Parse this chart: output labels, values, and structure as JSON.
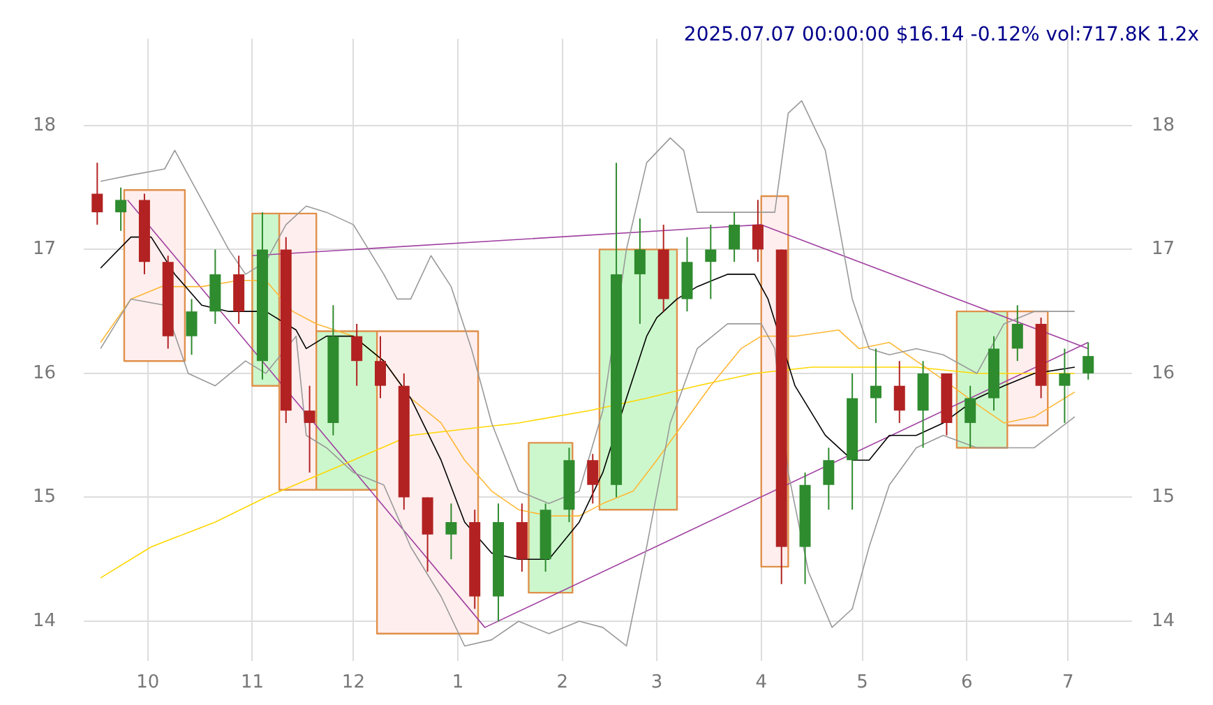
{
  "chart_data": {
    "type": "candlestick",
    "title": "2025.07.07 00:00:00 $16.14 -0.12% vol:717.8K 1.2x",
    "x": [
      "2024-09-16",
      "2024-09-23",
      "2024-09-30",
      "2024-10-07",
      "2024-10-14",
      "2024-10-21",
      "2024-10-28",
      "2024-11-04",
      "2024-11-11",
      "2024-11-18",
      "2024-11-25",
      "2024-12-02",
      "2024-12-09",
      "2024-12-16",
      "2024-12-23",
      "2024-12-30",
      "2025-01-06",
      "2025-01-13",
      "2025-01-20",
      "2025-01-27",
      "2025-02-03",
      "2025-02-10",
      "2025-02-17",
      "2025-02-24",
      "2025-03-03",
      "2025-03-10",
      "2025-03-17",
      "2025-03-24",
      "2025-03-31",
      "2025-04-07",
      "2025-04-14",
      "2025-04-21",
      "2025-04-28",
      "2025-05-05",
      "2025-05-12",
      "2025-05-19",
      "2025-05-26",
      "2025-06-02",
      "2025-06-09",
      "2025-06-16",
      "2025-06-23",
      "2025-06-30",
      "2025-07-07"
    ],
    "ohlc": [
      [
        17.45,
        17.7,
        17.2,
        17.3
      ],
      [
        17.3,
        17.5,
        17.15,
        17.4
      ],
      [
        17.4,
        17.45,
        16.8,
        16.9
      ],
      [
        16.9,
        16.95,
        16.2,
        16.3
      ],
      [
        16.3,
        16.6,
        16.15,
        16.5
      ],
      [
        16.5,
        17.0,
        16.4,
        16.8
      ],
      [
        16.8,
        16.95,
        16.4,
        16.5
      ],
      [
        16.1,
        17.3,
        15.95,
        17.0
      ],
      [
        17.0,
        17.1,
        15.6,
        15.7
      ],
      [
        15.7,
        15.9,
        15.2,
        15.6
      ],
      [
        15.6,
        16.55,
        15.5,
        16.3
      ],
      [
        16.3,
        16.4,
        15.9,
        16.1
      ],
      [
        16.1,
        16.3,
        15.8,
        15.9
      ],
      [
        15.9,
        16.0,
        14.9,
        15.0
      ],
      [
        15.0,
        15.0,
        14.4,
        14.7
      ],
      [
        14.7,
        14.95,
        14.5,
        14.8
      ],
      [
        14.8,
        14.9,
        14.1,
        14.2
      ],
      [
        14.2,
        14.95,
        14.0,
        14.8
      ],
      [
        14.8,
        14.95,
        14.4,
        14.5
      ],
      [
        14.5,
        14.95,
        14.4,
        14.9
      ],
      [
        14.9,
        15.4,
        14.8,
        15.3
      ],
      [
        15.3,
        15.35,
        14.95,
        15.1
      ],
      [
        15.1,
        17.7,
        15.0,
        16.8
      ],
      [
        16.8,
        17.25,
        16.4,
        17.0
      ],
      [
        17.0,
        17.2,
        16.5,
        16.6
      ],
      [
        16.6,
        17.1,
        16.5,
        16.9
      ],
      [
        16.9,
        17.2,
        16.6,
        17.0
      ],
      [
        17.0,
        17.3,
        16.9,
        17.2
      ],
      [
        17.2,
        17.4,
        16.9,
        17.0
      ],
      [
        17.0,
        17.0,
        14.3,
        14.6
      ],
      [
        14.6,
        15.2,
        14.3,
        15.1
      ],
      [
        15.1,
        15.4,
        14.9,
        15.3
      ],
      [
        15.3,
        16.0,
        14.9,
        15.8
      ],
      [
        15.8,
        16.2,
        15.6,
        15.9
      ],
      [
        15.9,
        16.1,
        15.6,
        15.7
      ],
      [
        15.7,
        16.1,
        15.4,
        16.0
      ],
      [
        16.0,
        16.0,
        15.5,
        15.6
      ],
      [
        15.6,
        15.9,
        15.4,
        15.8
      ],
      [
        15.8,
        16.3,
        15.7,
        16.2
      ],
      [
        16.2,
        16.55,
        16.1,
        16.4
      ],
      [
        16.4,
        16.45,
        15.8,
        15.9
      ],
      [
        15.9,
        16.2,
        15.6,
        16.0
      ],
      [
        16.0,
        16.25,
        15.95,
        16.14
      ]
    ],
    "colors": [
      "#b22222",
      "#2e8b2e",
      "#b22222",
      "#b22222",
      "#2e8b2e",
      "#2e8b2e",
      "#b22222",
      "#2e8b2e",
      "#b22222",
      "#b22222",
      "#2e8b2e",
      "#b22222",
      "#b22222",
      "#b22222",
      "#b22222",
      "#2e8b2e",
      "#b22222",
      "#2e8b2e",
      "#b22222",
      "#2e8b2e",
      "#2e8b2e",
      "#b22222",
      "#2e8b2e",
      "#2e8b2e",
      "#b22222",
      "#2e8b2e",
      "#2e8b2e",
      "#2e8b2e",
      "#b22222",
      "#b22222",
      "#2e8b2e",
      "#2e8b2e",
      "#2e8b2e",
      "#2e8b2e",
      "#b22222",
      "#2e8b2e",
      "#b22222",
      "#2e8b2e",
      "#2e8b2e",
      "#2e8b2e",
      "#b22222",
      "#2e8b2e",
      "#2e8b2e"
    ],
    "series": [
      {
        "type": "line",
        "color": "#999999",
        "x": [
          "2024-09-17",
          "2024-09-26",
          "2024-10-06",
          "2024-10-09",
          "2024-10-17",
          "2024-10-25",
          "2024-10-30",
          "2024-11-05",
          "2024-11-11",
          "2024-11-17",
          "2024-11-23",
          "2024-12-01",
          "2024-12-10",
          "2024-12-14",
          "2024-12-18",
          "2024-12-24",
          "2024-12-30",
          "2025-01-05",
          "2025-01-11",
          "2025-01-19",
          "2025-01-28",
          "2025-02-06",
          "2025-02-13",
          "2025-02-20",
          "2025-02-26",
          "2025-03-05",
          "2025-03-09",
          "2025-03-13",
          "2025-03-22",
          "2025-03-30",
          "2025-04-05",
          "2025-04-09",
          "2025-04-13",
          "2025-04-20",
          "2025-04-28",
          "2025-05-03",
          "2025-05-09",
          "2025-05-17",
          "2025-05-25",
          "2025-06-04",
          "2025-06-12",
          "2025-06-21",
          "2025-07-03"
        ],
        "values": [
          17.55,
          17.6,
          17.65,
          17.8,
          17.4,
          17.0,
          16.8,
          16.9,
          17.2,
          17.35,
          17.3,
          17.2,
          16.8,
          16.6,
          16.6,
          16.95,
          16.7,
          16.2,
          15.6,
          15.05,
          14.95,
          15.05,
          15.7,
          17.0,
          17.7,
          17.9,
          17.8,
          17.3,
          17.3,
          17.3,
          17.3,
          18.1,
          18.2,
          17.8,
          16.6,
          16.2,
          16.15,
          16.2,
          16.15,
          16.0,
          16.4,
          16.5,
          16.5
        ]
      },
      {
        "type": "line",
        "color": "#999999",
        "x": [
          "2024-09-17",
          "2024-09-26",
          "2024-10-06",
          "2024-10-13",
          "2024-10-21",
          "2024-10-30",
          "2024-11-05",
          "2024-11-14",
          "2024-11-17",
          "2024-11-23",
          "2024-12-01",
          "2024-12-10",
          "2024-12-18",
          "2024-12-27",
          "2025-01-03",
          "2025-01-11",
          "2025-01-19",
          "2025-01-28",
          "2025-02-06",
          "2025-02-13",
          "2025-02-20",
          "2025-02-26",
          "2025-03-05",
          "2025-03-13",
          "2025-03-22",
          "2025-04-01",
          "2025-04-05",
          "2025-04-09",
          "2025-04-15",
          "2025-04-22",
          "2025-04-28",
          "2025-05-03",
          "2025-05-09",
          "2025-05-17",
          "2025-05-25",
          "2025-06-04",
          "2025-06-12",
          "2025-06-21",
          "2025-07-03"
        ],
        "values": [
          16.2,
          16.6,
          16.55,
          16.0,
          15.9,
          16.1,
          16.0,
          16.3,
          15.5,
          15.4,
          15.2,
          15.1,
          14.6,
          14.2,
          13.8,
          13.85,
          14.0,
          13.9,
          14.0,
          13.95,
          13.8,
          14.6,
          15.6,
          16.2,
          16.4,
          16.4,
          16.2,
          15.2,
          14.4,
          13.95,
          14.1,
          14.6,
          15.1,
          15.4,
          15.5,
          15.4,
          15.4,
          15.4,
          15.65
        ]
      },
      {
        "type": "line",
        "color": "#000000",
        "x": [
          "2024-09-17",
          "2024-09-26",
          "2024-10-02",
          "2024-10-09",
          "2024-10-17",
          "2024-10-25",
          "2024-10-30",
          "2024-11-05",
          "2024-11-14",
          "2024-11-17",
          "2024-11-23",
          "2024-12-01",
          "2024-12-10",
          "2024-12-18",
          "2024-12-27",
          "2025-01-03",
          "2025-01-11",
          "2025-01-19",
          "2025-01-28",
          "2025-02-06",
          "2025-02-13",
          "2025-02-20",
          "2025-02-26",
          "2025-03-01",
          "2025-03-07",
          "2025-03-13",
          "2025-03-22",
          "2025-03-30",
          "2025-04-03",
          "2025-04-11",
          "2025-04-20",
          "2025-04-28",
          "2025-05-03",
          "2025-05-09",
          "2025-05-17",
          "2025-05-25",
          "2025-06-04",
          "2025-06-12",
          "2025-06-21",
          "2025-07-03"
        ],
        "values": [
          16.85,
          17.1,
          17.1,
          16.8,
          16.55,
          16.5,
          16.5,
          16.5,
          16.35,
          16.2,
          16.3,
          16.3,
          16.1,
          15.8,
          15.3,
          14.8,
          14.55,
          14.5,
          14.5,
          14.8,
          15.2,
          15.8,
          16.3,
          16.45,
          16.6,
          16.7,
          16.8,
          16.8,
          16.6,
          15.9,
          15.5,
          15.3,
          15.3,
          15.5,
          15.5,
          15.6,
          15.8,
          15.9,
          16.0,
          16.05
        ]
      },
      {
        "type": "line",
        "color": "#ffb733",
        "x": [
          "2024-09-17",
          "2024-09-26",
          "2024-10-05",
          "2024-10-17",
          "2024-10-28",
          "2024-11-05",
          "2024-11-13",
          "2024-11-20",
          "2024-12-01",
          "2024-12-10",
          "2024-12-18",
          "2024-12-27",
          "2025-01-03",
          "2025-01-11",
          "2025-01-19",
          "2025-01-28",
          "2025-02-06",
          "2025-02-13",
          "2025-02-22",
          "2025-03-01",
          "2025-03-09",
          "2025-03-17",
          "2025-03-26",
          "2025-04-01",
          "2025-04-11",
          "2025-04-24",
          "2025-04-30",
          "2025-05-09",
          "2025-05-17",
          "2025-05-25",
          "2025-06-04",
          "2025-06-12",
          "2025-06-21",
          "2025-07-03"
        ],
        "values": [
          16.25,
          16.6,
          16.7,
          16.7,
          16.75,
          16.75,
          16.5,
          16.4,
          16.3,
          16.1,
          15.8,
          15.6,
          15.3,
          15.05,
          14.9,
          14.85,
          14.85,
          14.95,
          15.05,
          15.3,
          15.6,
          15.9,
          16.2,
          16.3,
          16.3,
          16.35,
          16.2,
          16.25,
          16.1,
          15.95,
          15.75,
          15.6,
          15.65,
          15.85
        ]
      },
      {
        "type": "line",
        "color": "#ffd700",
        "x": [
          "2024-09-17",
          "2024-10-02",
          "2024-10-21",
          "2024-11-05",
          "2024-12-01",
          "2024-12-18",
          "2025-01-03",
          "2025-01-19",
          "2025-02-09",
          "2025-02-26",
          "2025-03-13",
          "2025-03-30",
          "2025-04-16",
          "2025-05-01",
          "2025-05-17",
          "2025-06-04",
          "2025-06-21",
          "2025-07-03"
        ],
        "values": [
          14.35,
          14.6,
          14.8,
          15.0,
          15.3,
          15.5,
          15.55,
          15.6,
          15.7,
          15.8,
          15.9,
          16.0,
          16.05,
          16.05,
          16.05,
          16.0,
          16.0,
          16.0
        ]
      },
      {
        "type": "line",
        "color": "#a040a0",
        "x": [
          "2024-09-25",
          "2025-01-09",
          "2025-07-07"
        ],
        "values": [
          17.4,
          13.95,
          16.25
        ]
      },
      {
        "type": "line",
        "color": "#a040a0",
        "x": [
          "2024-11-01",
          "2025-04-01",
          "2025-07-07"
        ],
        "values": [
          16.95,
          17.2,
          16.2
        ]
      },
      {
        "type": "area",
        "color": "#ffeeee",
        "x": [
          "2024-09-24",
          "2024-10-12",
          "2024-10-12",
          "2024-09-24",
          "2024-09-24"
        ],
        "values": [
          17.48,
          17.48,
          16.1,
          16.1,
          17.48
        ]
      },
      {
        "type": "area",
        "color": "#ccf7cc",
        "x": [
          "2024-11-01",
          "2024-11-09",
          "2024-11-09",
          "2024-11-01",
          "2024-11-01"
        ],
        "values": [
          17.29,
          17.29,
          15.9,
          15.9,
          17.29
        ]
      },
      {
        "type": "area",
        "color": "#ffeeee",
        "x": [
          "2024-11-09",
          "2024-11-20",
          "2024-11-20",
          "2024-11-09",
          "2024-11-09"
        ],
        "values": [
          17.29,
          17.29,
          15.06,
          15.06,
          17.29
        ]
      },
      {
        "type": "area",
        "color": "#ccf7cc",
        "x": [
          "2024-11-20",
          "2024-12-08",
          "2024-12-08",
          "2024-11-20",
          "2024-11-20"
        ],
        "values": [
          16.34,
          16.34,
          15.06,
          15.06,
          16.34
        ]
      },
      {
        "type": "area",
        "color": "#ffeeee",
        "x": [
          "2024-12-08",
          "2025-01-07",
          "2025-01-07",
          "2024-12-08",
          "2024-12-08"
        ],
        "values": [
          16.34,
          16.34,
          13.9,
          13.9,
          16.34
        ]
      },
      {
        "type": "area",
        "color": "#ccf7cc",
        "x": [
          "2025-01-22",
          "2025-02-04",
          "2025-02-04",
          "2025-01-22",
          "2025-01-22"
        ],
        "values": [
          15.44,
          15.44,
          14.23,
          14.23,
          15.44
        ]
      },
      {
        "type": "area",
        "color": "#ccf7cc",
        "x": [
          "2025-02-12",
          "2025-03-07",
          "2025-03-07",
          "2025-02-12",
          "2025-02-12"
        ],
        "values": [
          17.0,
          17.0,
          14.9,
          14.9,
          17.0
        ]
      },
      {
        "type": "area",
        "color": "#ffeeee",
        "x": [
          "2025-04-01",
          "2025-04-09",
          "2025-04-09",
          "2025-04-01",
          "2025-04-01"
        ],
        "values": [
          17.43,
          17.43,
          14.44,
          14.44,
          17.43
        ]
      },
      {
        "type": "area",
        "color": "#ccf7cc",
        "x": [
          "2025-05-29",
          "2025-06-13",
          "2025-06-13",
          "2025-05-29",
          "2025-05-29"
        ],
        "values": [
          16.5,
          16.5,
          15.4,
          15.4,
          16.5
        ]
      },
      {
        "type": "area",
        "color": "#ffeeee",
        "x": [
          "2025-06-13",
          "2025-06-25",
          "2025-06-25",
          "2025-06-13",
          "2025-06-13"
        ],
        "values": [
          16.5,
          16.5,
          15.58,
          15.58,
          16.5
        ]
      }
    ],
    "xlim": [
      "2024-09-12",
      "2025-07-20"
    ],
    "xticks": [
      {
        "value": "2024-10-01",
        "label": "10"
      },
      {
        "value": "2024-11-01",
        "label": "11"
      },
      {
        "value": "2024-12-01",
        "label": "12"
      },
      {
        "value": "2025-01-01",
        "label": "1"
      },
      {
        "value": "2025-02-01",
        "label": "2"
      },
      {
        "value": "2025-03-01",
        "label": "3"
      },
      {
        "value": "2025-04-01",
        "label": "4"
      },
      {
        "value": "2025-05-01",
        "label": "5"
      },
      {
        "value": "2025-06-01",
        "label": "6"
      },
      {
        "value": "2025-07-01",
        "label": "7"
      }
    ],
    "ylim": [
      13.68,
      18.7
    ],
    "yticks": [
      14,
      15,
      16,
      17,
      18
    ],
    "y2lim": [
      13.68,
      18.7
    ],
    "y2ticks": [
      14,
      15,
      16,
      17,
      18
    ],
    "grid": true,
    "legend": false
  }
}
